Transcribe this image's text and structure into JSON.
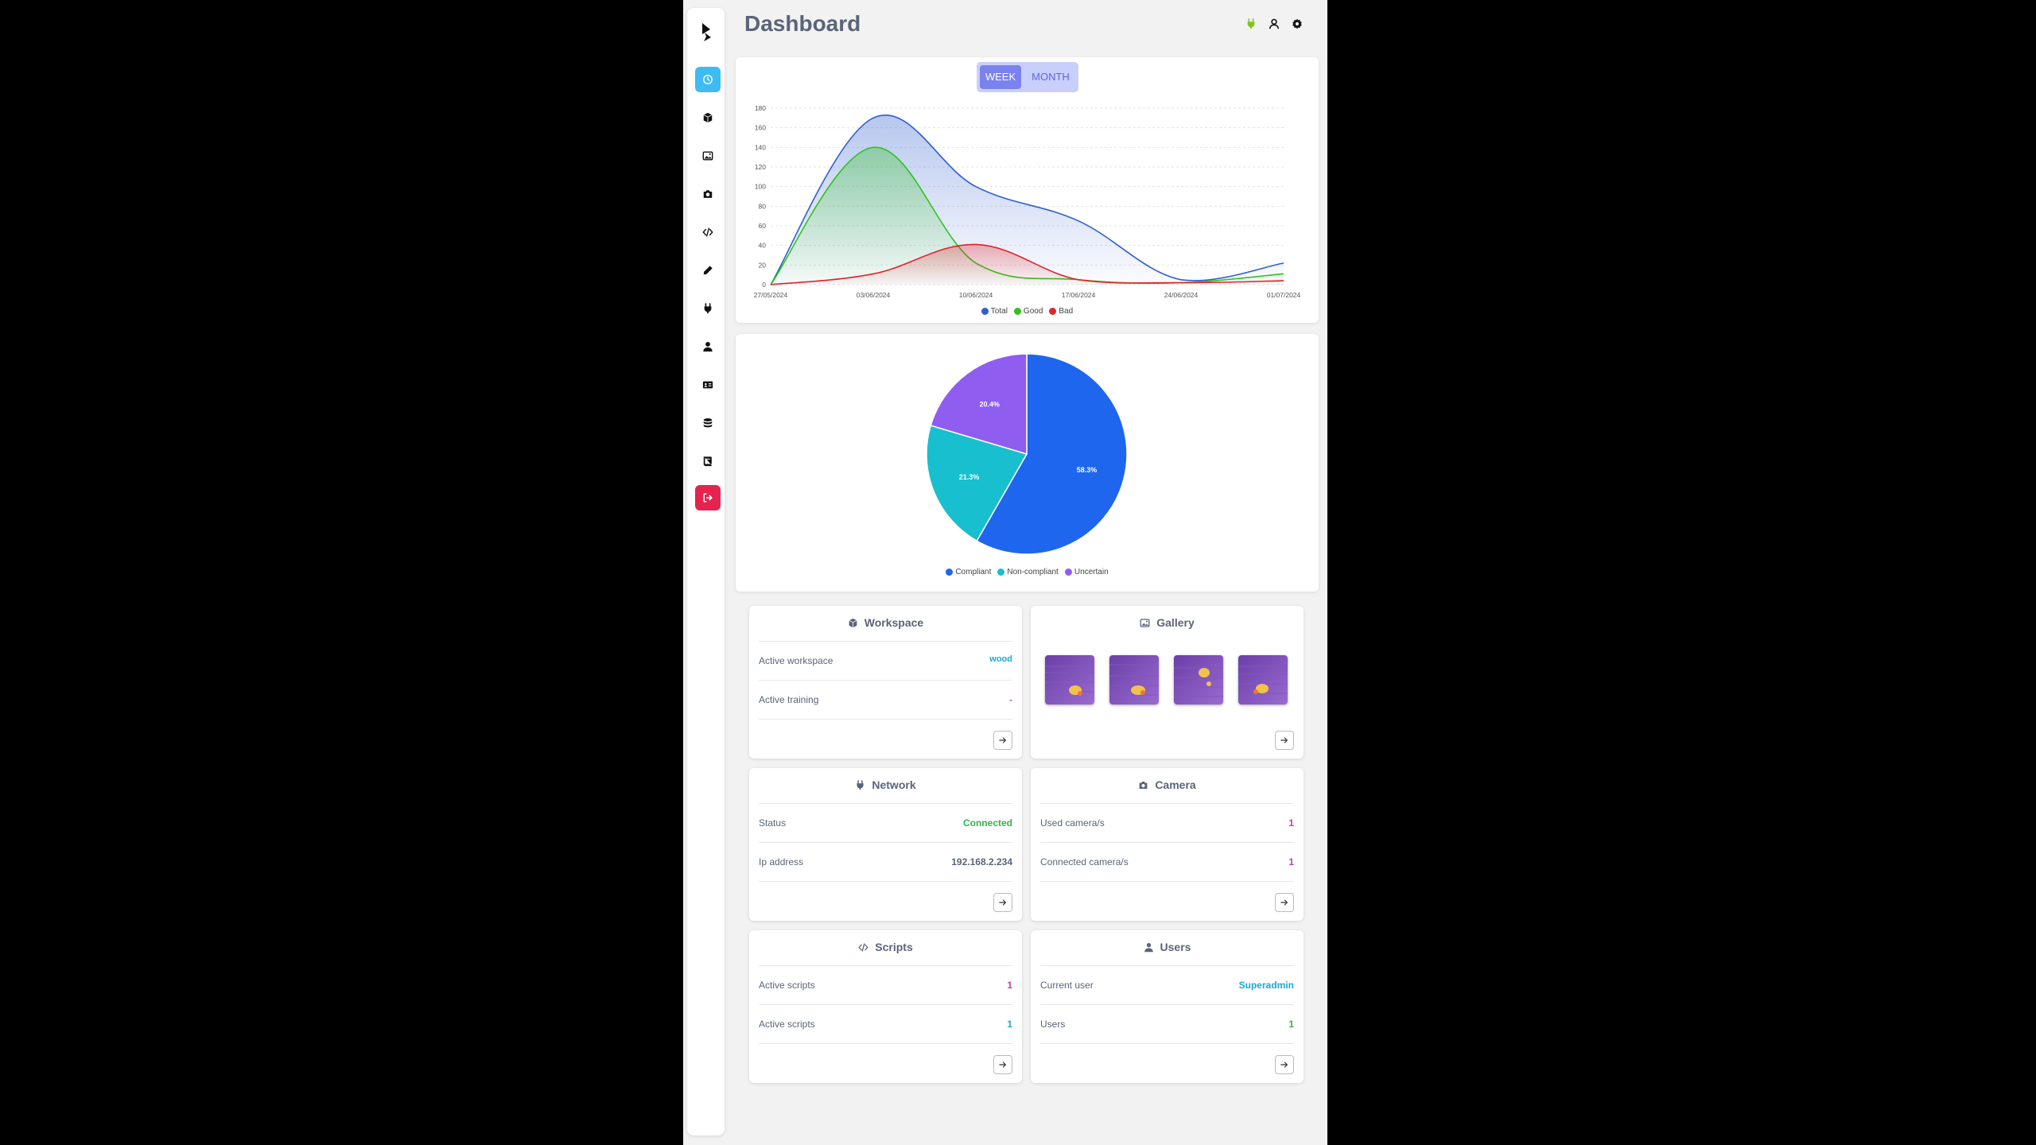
{
  "header": {
    "title": "Dashboard"
  },
  "header_icons": [
    "plug-icon",
    "user-icon",
    "settings-icon"
  ],
  "sidebar": {
    "items": [
      {
        "name": "dashboard",
        "icon": "clock-icon",
        "active": true
      },
      {
        "name": "workspace",
        "icon": "cube-icon"
      },
      {
        "name": "gallery",
        "icon": "image-icon"
      },
      {
        "name": "camera",
        "icon": "camera-icon"
      },
      {
        "name": "scripts",
        "icon": "code-icon"
      },
      {
        "name": "tools",
        "icon": "pen-icon"
      },
      {
        "name": "network",
        "icon": "plug-icon"
      },
      {
        "name": "users",
        "icon": "user-icon"
      },
      {
        "name": "id-card",
        "icon": "id-card-icon"
      },
      {
        "name": "database",
        "icon": "database-icon"
      },
      {
        "name": "book",
        "icon": "book-icon"
      },
      {
        "name": "logout",
        "icon": "sign-out-icon",
        "danger": true
      }
    ]
  },
  "period_toggle": {
    "week": "WEEK",
    "month": "MONTH",
    "selected": "WEEK"
  },
  "chart_data": [
    {
      "type": "area",
      "x": [
        "27/05/2024",
        "03/06/2024",
        "10/06/2024",
        "17/06/2024",
        "24/06/2024",
        "01/07/2024"
      ],
      "ylim": [
        0,
        180
      ],
      "yticks": [
        0,
        20,
        40,
        60,
        80,
        100,
        120,
        140,
        160,
        180
      ],
      "grid": true,
      "legend": "bottom",
      "series": [
        {
          "name": "Total",
          "color": "#2f5ecf",
          "values": [
            0,
            170,
            100,
            65,
            5,
            22
          ]
        },
        {
          "name": "Good",
          "color": "#2ec41c",
          "values": [
            0,
            140,
            22,
            5,
            2,
            11
          ]
        },
        {
          "name": "Bad",
          "color": "#e0242b",
          "values": [
            0,
            11,
            41,
            5,
            2,
            4
          ]
        }
      ]
    },
    {
      "type": "pie",
      "legend": "bottom",
      "slices": [
        {
          "name": "Compliant",
          "value": 58.3,
          "label": "58.3%",
          "color": "#1e66ee"
        },
        {
          "name": "Non-compliant",
          "value": 21.3,
          "label": "21.3%",
          "color": "#18bfcf"
        },
        {
          "name": "Uncertain",
          "value": 20.4,
          "label": "20.4%",
          "color": "#8f5df0"
        }
      ]
    }
  ],
  "cards": {
    "workspace": {
      "title": "Workspace",
      "rows": [
        {
          "label": "Active workspace",
          "value": "wood",
          "color": "#1aa9d6"
        },
        {
          "label": "Active training",
          "value": "-",
          "color": "#d24ab8"
        }
      ]
    },
    "gallery": {
      "title": "Gallery",
      "thumbnails": 4
    },
    "network": {
      "title": "Network",
      "rows": [
        {
          "label": "Status",
          "value": "Connected",
          "color": "#34b34a"
        },
        {
          "label": "Ip address",
          "value": "192.168.2.234",
          "color": "#5a6479"
        }
      ]
    },
    "camera": {
      "title": "Camera",
      "rows": [
        {
          "label": "Used camera/s",
          "value": "1",
          "color": "#c43bb1"
        },
        {
          "label": "Connected camera/s",
          "value": "1",
          "color": "#c43bb1"
        }
      ]
    },
    "scripts": {
      "title": "Scripts",
      "rows": [
        {
          "label": "Active scripts",
          "value": "1",
          "color": "#c43bb1"
        },
        {
          "label": "Active scripts",
          "value": "1",
          "color": "#1aa9d6"
        }
      ]
    },
    "users": {
      "title": "Users",
      "rows": [
        {
          "label": "Current user",
          "value": "Superadmin",
          "color": "#1aa9d6"
        },
        {
          "label": "Users",
          "value": "1",
          "color": "#34b34a"
        }
      ]
    }
  }
}
